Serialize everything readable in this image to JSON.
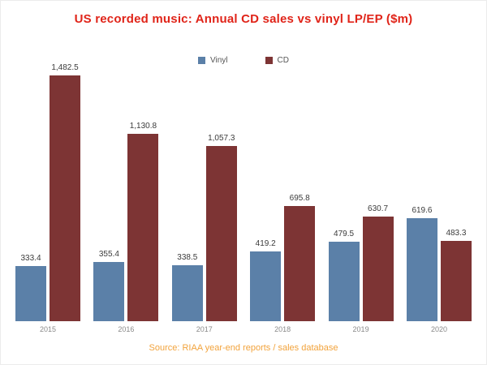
{
  "source_note": "Source: RIAA year-end reports / sales database",
  "colors": {
    "title": "#e02419",
    "source": "#f2a33c",
    "value_label": "#3b3b3b",
    "axis_label": "#8a8a8a",
    "vinyl": "#5b80a8",
    "cd": "#7d3434"
  },
  "chart_data": {
    "type": "bar",
    "title": "US recorded music: Annual CD sales vs vinyl LP/EP ($m)",
    "categories": [
      "2015",
      "2016",
      "2017",
      "2018",
      "2019",
      "2020"
    ],
    "series": [
      {
        "name": "Vinyl",
        "color": "#5b80a8",
        "values": [
          333.4,
          355.4,
          338.5,
          419.2,
          479.5,
          619.6
        ]
      },
      {
        "name": "CD",
        "color": "#7d3434",
        "values": [
          1482.5,
          1130.8,
          1057.3,
          695.8,
          630.7,
          483.3
        ]
      }
    ],
    "xlabel": "",
    "ylabel": "",
    "ylim": [
      0,
      1500
    ],
    "grid": false,
    "legend_position": "top",
    "data_labels": true
  }
}
